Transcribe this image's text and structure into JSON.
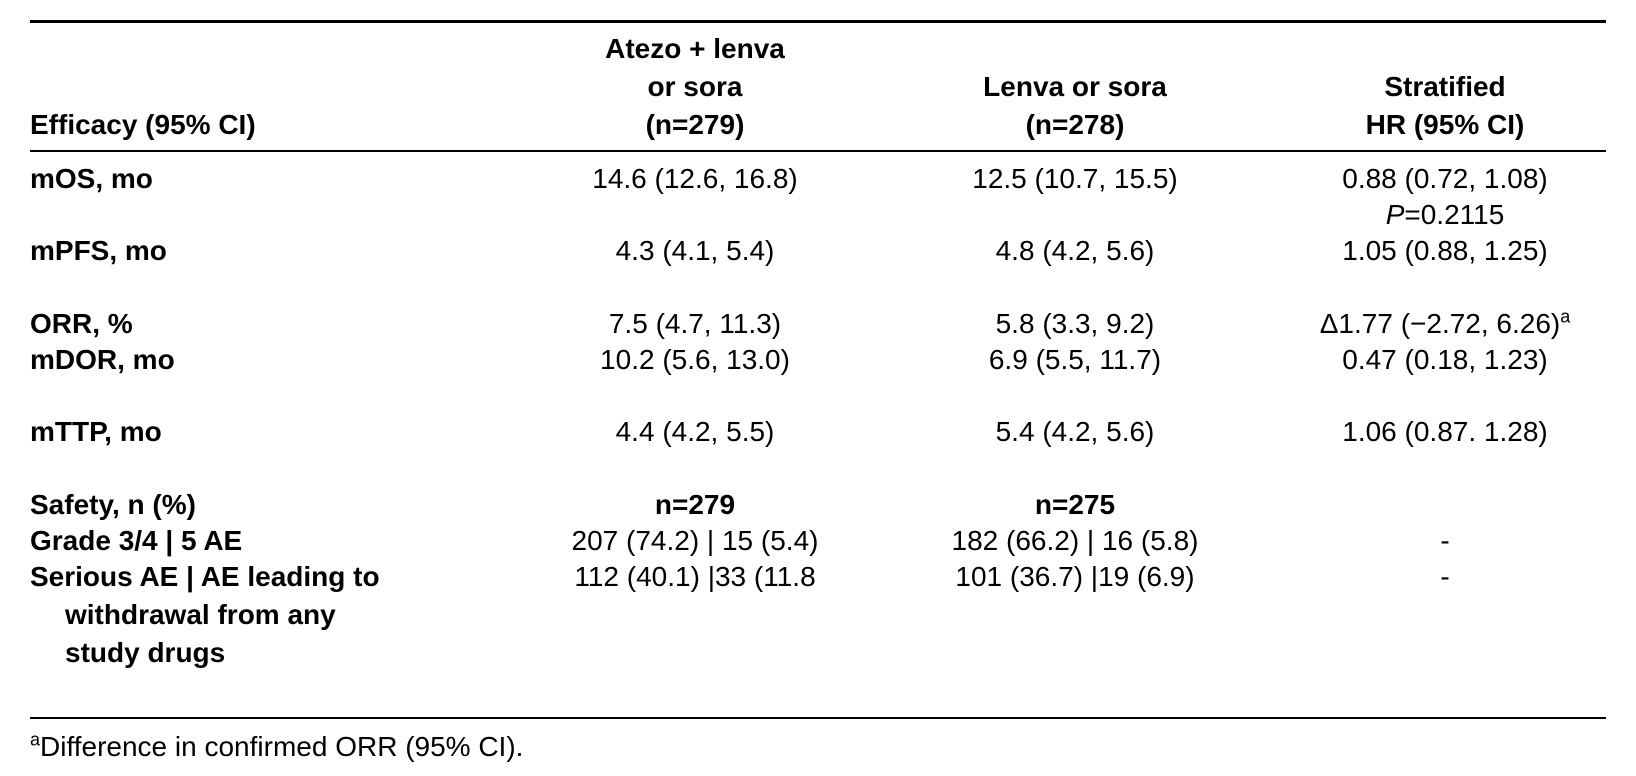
{
  "header": {
    "col0": "Efficacy (95% CI)",
    "col1": [
      "Atezo + lenva",
      "or sora",
      "(n=279)"
    ],
    "col2": [
      "Lenva or sora",
      "(n=278)"
    ],
    "col3": [
      "Stratified",
      "HR (95% CI)"
    ]
  },
  "rows": [
    {
      "label": "mOS, mo",
      "c1": "14.6 (12.6, 16.8)",
      "c2": "12.5 (10.7, 15.5)",
      "c3": "0.88 (0.72, 1.08)",
      "c3_p_label": "P",
      "c3_p_value": "=0.2115"
    },
    {
      "label": "mPFS, mo",
      "c1": "4.3 (4.1, 5.4)",
      "c2": "4.8 (4.2, 5.6)",
      "c3": "1.05 (0.88, 1.25)"
    },
    {
      "label": "ORR, %",
      "c1": "7.5 (4.7, 11.3)",
      "c2": "5.8 (3.3, 9.2)",
      "c3": "Δ1.77 (−2.72, 6.26)",
      "c3_sup": "a"
    },
    {
      "label": "mDOR, mo",
      "c1": "10.2 (5.6, 13.0)",
      "c2": "6.9 (5.5, 11.7)",
      "c3": "0.47 (0.18, 1.23)"
    },
    {
      "label": "mTTP, mo",
      "c1": "4.4 (4.2, 5.5)",
      "c2": "5.4 (4.2, 5.6)",
      "c3": "1.06 (0.87. 1.28)"
    }
  ],
  "safety": {
    "label": "Safety, n (%)",
    "n1": "n=279",
    "n2": "n=275",
    "rows": [
      {
        "label": "Grade 3/4 | 5 AE",
        "c1": "207 (74.2) | 15 (5.4)",
        "c2": "182 (66.2) | 16 (5.8)",
        "c3": "-"
      },
      {
        "label_lines": [
          "Serious AE | AE leading to",
          "withdrawal from any",
          "study drugs"
        ],
        "c1": "112 (40.1) |33 (11.8",
        "c2": "101 (36.7) |19 (6.9)",
        "c3": "-"
      }
    ]
  },
  "footnote": {
    "sup": "a",
    "text": "Difference in confirmed ORR (95% CI)."
  }
}
